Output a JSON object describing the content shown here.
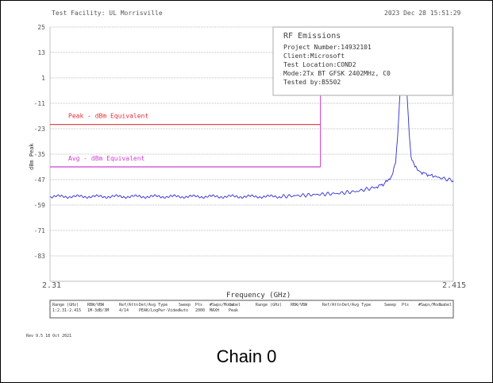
{
  "header": {
    "facility": "Test Facility:  UL Morrisville",
    "datetime": "2023 Dec 28   15:51:29"
  },
  "infobox": {
    "title": "RF Emissions",
    "lines": [
      "Project Number:14932101",
      "Client:Microsoft",
      "Test Location:COND2",
      "Mode:2Tx BT GFSK 2402MHz, C0",
      "Tested by:B5502"
    ]
  },
  "footer": {
    "rev": "Rev 9.5 18 Oct 2021",
    "caption": "Chain 0"
  },
  "table": {
    "left_headers": [
      "Range (GHz)",
      "RBW/VBW",
      "Ref/Attn",
      "Det/Avg Type",
      "Sweep",
      "Pts",
      "#Swps/Mode",
      "Label"
    ],
    "left_values": [
      "1:2.31-2.415",
      "1M-3dB/3M",
      "4/14",
      "PEAK/LogPwr-Video",
      "Auto",
      "2000",
      "MAXH",
      "Peak"
    ],
    "right_headers": [
      "Range (GHz)",
      "RBW/VBW",
      "Ref/Attn",
      "Det/Avg Type",
      "Sweep",
      "Pts",
      "#Swps/Mode",
      "Label"
    ]
  },
  "colors": {
    "trace": "#2d2dd6",
    "peak_line": "#e0303a",
    "avg_line": "#d23cd2",
    "grid": "#aaaaaa",
    "infobox_border": "#aaaaaa"
  },
  "chart_data": {
    "type": "line",
    "title": "",
    "xlabel": "Frequency (GHz)",
    "ylabel": "dBm Peak",
    "xlim": [
      2.31,
      2.415
    ],
    "ylim": [
      -95,
      25
    ],
    "x_tick_labels": [
      "2.31",
      "2.415"
    ],
    "y_ticks": [
      25,
      13,
      1,
      -11,
      -23,
      -35,
      -47,
      -59,
      -71,
      -83
    ],
    "grid": true,
    "limit_lines": [
      {
        "name": "Peak - dBm Equivalent",
        "value": -21,
        "x_end": 2.3804,
        "color": "#e0303a"
      },
      {
        "name": "Avg - dBm Equivalent",
        "value": -41,
        "x_end": 2.3804,
        "color": "#d23cd2"
      }
    ],
    "series": [
      {
        "x": [
          2.31,
          2.32,
          2.33,
          2.34,
          2.35,
          2.36,
          2.37,
          2.375,
          2.38,
          2.385,
          2.39,
          2.395,
          2.397,
          2.398,
          2.399,
          2.4,
          2.4005,
          2.401,
          2.4015,
          2.402,
          2.4025,
          2.403,
          2.4035,
          2.404,
          2.405,
          2.406,
          2.408,
          2.41,
          2.415
        ],
        "values": [
          -55,
          -55,
          -55,
          -55,
          -55,
          -55,
          -55,
          -54.5,
          -54,
          -53.5,
          -52.5,
          -50.5,
          -49,
          -47.5,
          -45,
          -39,
          -27,
          -10,
          5,
          13,
          6,
          -8,
          -25,
          -36,
          -41,
          -43,
          -44.5,
          -45.5,
          -47.5
        ]
      }
    ]
  }
}
